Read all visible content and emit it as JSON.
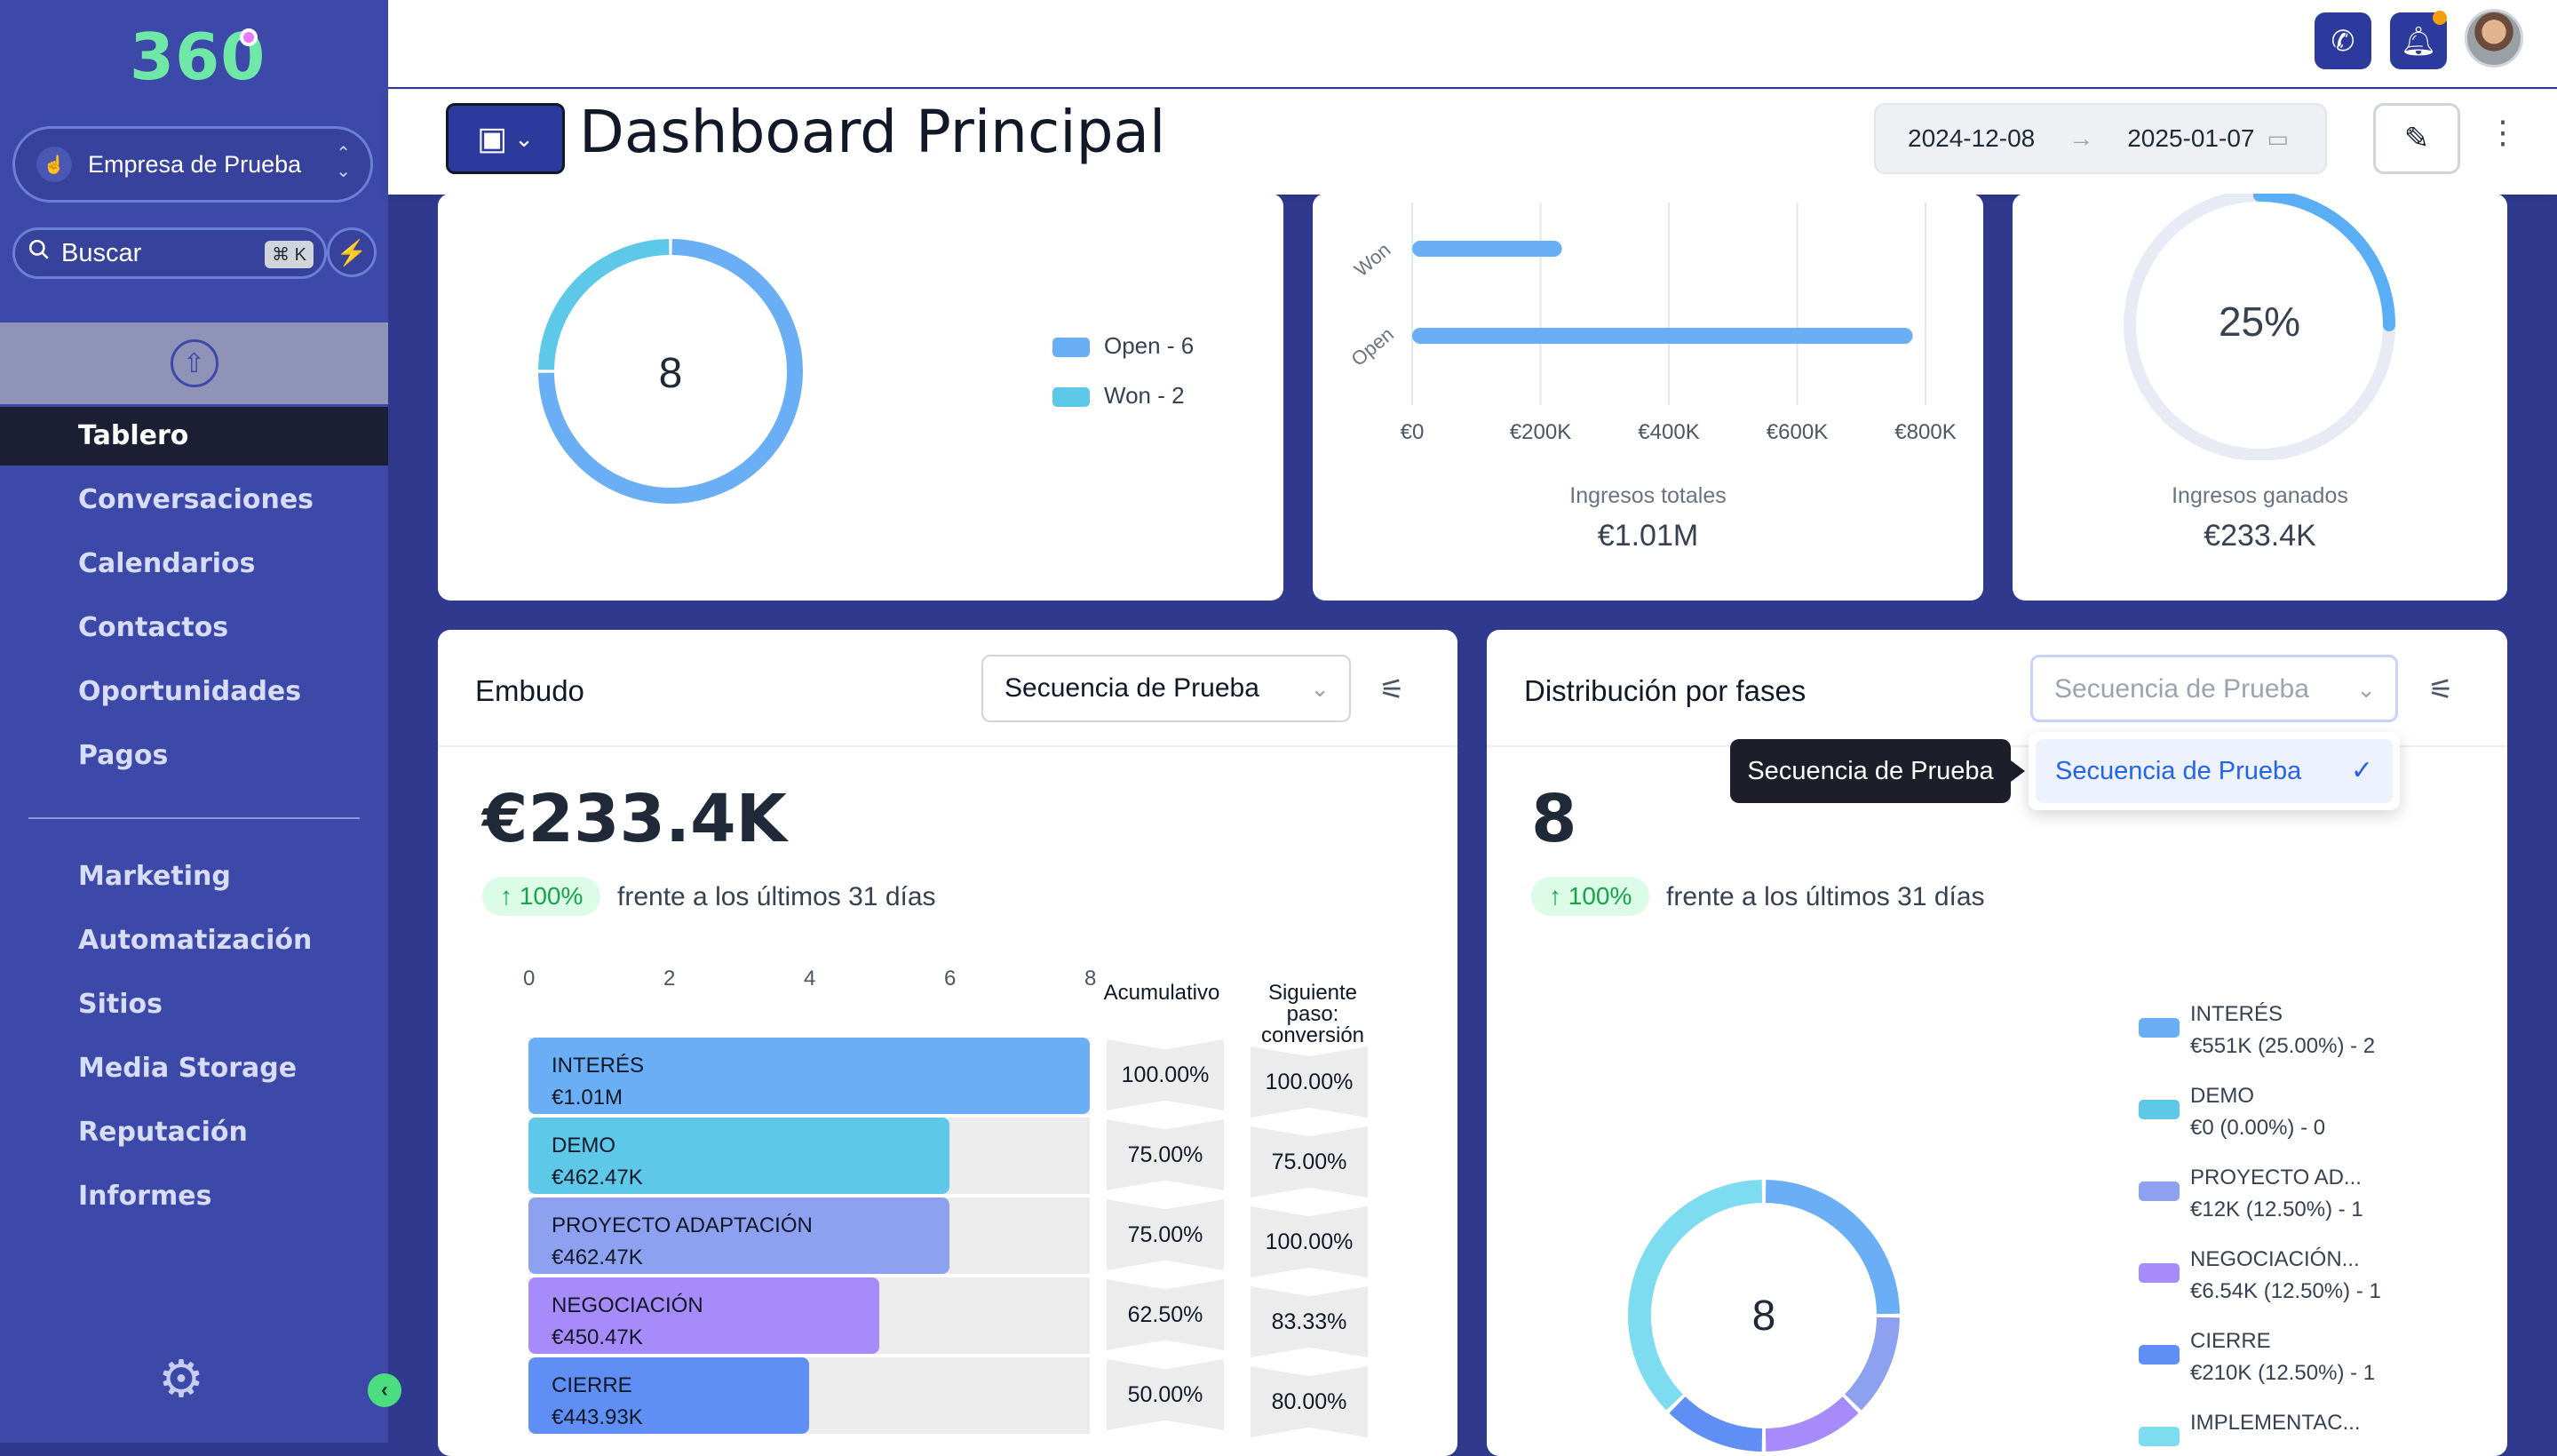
{
  "sidebar": {
    "logo": "360",
    "company": "Empresa de Prueba",
    "search_placeholder": "Buscar",
    "search_shortcut": "⌘ K",
    "nav": [
      "Tablero",
      "Conversaciones",
      "Calendarios",
      "Contactos",
      "Oportunidades",
      "Pagos"
    ],
    "nav2": [
      "Marketing",
      "Automatización",
      "Sitios",
      "Media Storage",
      "Reputación",
      "Informes"
    ],
    "active": "Tablero"
  },
  "header": {
    "title": "Dashboard Principal",
    "date_from": "2024-12-08",
    "date_to": "2025-01-07"
  },
  "status_card": {
    "total": "8",
    "legend": [
      "Open - 6",
      "Won - 2"
    ],
    "chart_data": {
      "type": "pie",
      "categories": [
        "Open",
        "Won"
      ],
      "values": [
        6,
        2
      ]
    }
  },
  "revenue_card": {
    "caption": "Ingresos totales",
    "value": "€1.01M",
    "chart_data": {
      "type": "bar",
      "categories": [
        "Won",
        "Open"
      ],
      "values": [
        233400,
        780000
      ],
      "xticks": [
        "€0",
        "€200K",
        "€400K",
        "€600K",
        "€800K"
      ],
      "xlim": [
        0,
        800000
      ]
    }
  },
  "won_card": {
    "percent": "25%",
    "caption": "Ingresos ganados",
    "value": "€233.4K",
    "chart_data": {
      "type": "pie",
      "categories": [
        "ganado"
      ],
      "values": [
        25
      ]
    }
  },
  "funnel": {
    "title": "Embudo",
    "select_value": "Secuencia de Prueba",
    "big_value": "€233.4K",
    "delta": "↑ 100%",
    "vs_text": "frente a los últimos 31 días",
    "axis_ticks": [
      "0",
      "2",
      "4",
      "6",
      "8"
    ],
    "col_cumulative": "Acumulativo",
    "col_next": "Siguiente paso: conversión",
    "stages": [
      {
        "name": "INTERÉS",
        "amount": "€1.01M",
        "count": 8,
        "color": "#6aaef5",
        "cumulative": "100.00%",
        "next": "100.00%"
      },
      {
        "name": "DEMO",
        "amount": "€462.47K",
        "count": 6,
        "color": "#5ec8e8",
        "cumulative": "75.00%",
        "next": "75.00%"
      },
      {
        "name": "PROYECTO ADAPTACIÓN",
        "amount": "€462.47K",
        "count": 6,
        "color": "#8ea0f0",
        "cumulative": "75.00%",
        "next": "100.00%"
      },
      {
        "name": "NEGOCIACIÓN",
        "amount": "€450.47K",
        "count": 5,
        "color": "#a78bfa",
        "cumulative": "62.50%",
        "next": "83.33%"
      },
      {
        "name": "CIERRE",
        "amount": "€443.93K",
        "count": 4,
        "color": "#5f8ef5",
        "cumulative": "50.00%",
        "next": "80.00%"
      }
    ],
    "chart_data": {
      "type": "bar",
      "categories": [
        "INTERÉS",
        "DEMO",
        "PROYECTO ADAPTACIÓN",
        "NEGOCIACIÓN",
        "CIERRE"
      ],
      "values": [
        8,
        6,
        6,
        5,
        4
      ],
      "xlim": [
        0,
        8
      ]
    }
  },
  "distribution": {
    "title": "Distribución por fases",
    "select_placeholder": "Secuencia de Prueba",
    "tooltip": "Secuencia de Prueba",
    "option": "Secuencia de Prueba",
    "big_value": "8",
    "delta": "↑ 100%",
    "vs_text": "frente a los últimos 31 días",
    "donut_total": "8",
    "legend": [
      {
        "line1": "INTERÉS",
        "line2": "€551K (25.00%) - 2",
        "color": "#6aaef5"
      },
      {
        "line1": "DEMO",
        "line2": "€0 (0.00%) - 0",
        "color": "#5ec8e8"
      },
      {
        "line1": "PROYECTO AD...",
        "line2": "€12K (12.50%) - 1",
        "color": "#8ea0f0"
      },
      {
        "line1": "NEGOCIACIÓN...",
        "line2": "€6.54K (12.50%) - 1",
        "color": "#a78bfa"
      },
      {
        "line1": "CIERRE",
        "line2": "€210K (12.50%) - 1",
        "color": "#5f8ef5"
      },
      {
        "line1": "IMPLEMENTAC...",
        "line2": "",
        "color": "#7ddcf0"
      }
    ],
    "chart_data": {
      "type": "pie",
      "categories": [
        "INTERÉS",
        "DEMO",
        "PROYECTO AD...",
        "NEGOCIACIÓN...",
        "CIERRE",
        "IMPLEMENTAC..."
      ],
      "values": [
        2,
        0,
        1,
        1,
        1,
        3
      ]
    }
  }
}
